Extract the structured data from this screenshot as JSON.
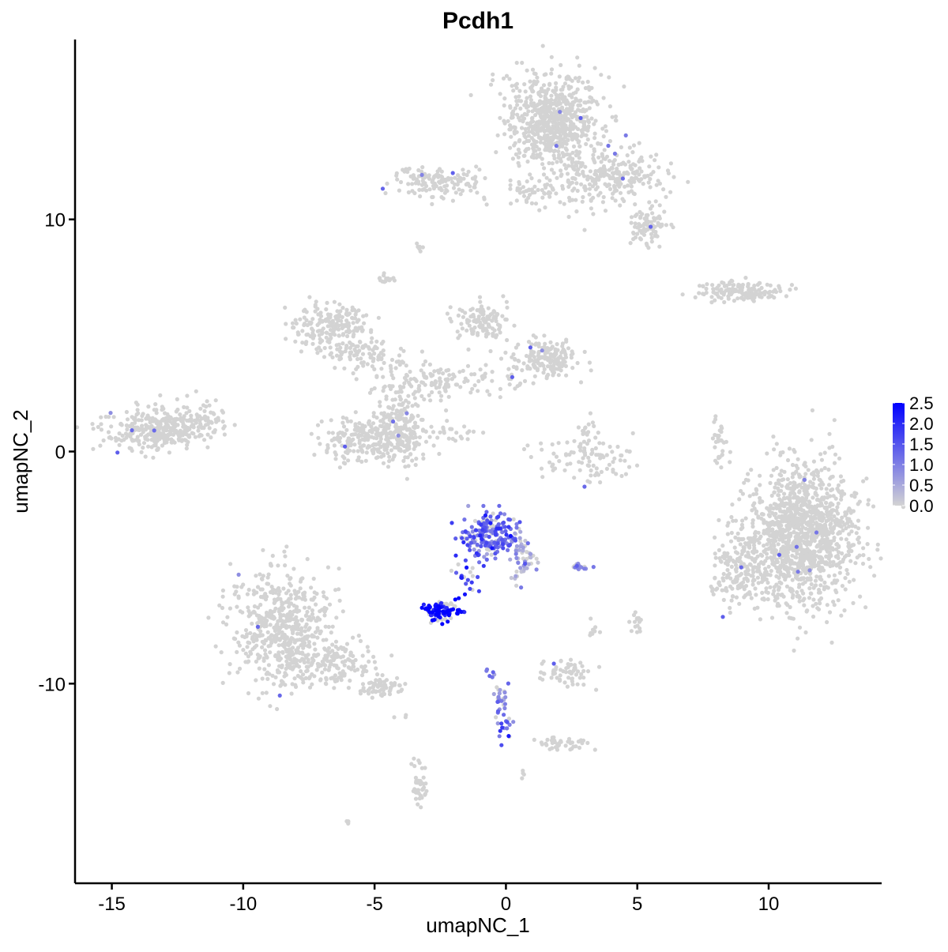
{
  "chart_data": {
    "type": "scatter",
    "title": "Pcdh1",
    "xlabel": "umapNC_1",
    "ylabel": "umapNC_2",
    "xlim": [
      -16.4,
      14.3
    ],
    "ylim": [
      -18.6,
      17.75
    ],
    "xticks": [
      -15,
      -10,
      -5,
      0,
      5,
      10
    ],
    "yticks": [
      -10,
      0,
      10
    ],
    "grid": false,
    "legend": {
      "placement": "right",
      "type": "colorbar",
      "ticks": [
        "0.0",
        "0.5",
        "1.0",
        "1.5",
        "2.0",
        "2.5"
      ],
      "range": [
        0,
        2.5
      ]
    },
    "colors": {
      "low": "#d3d3d3",
      "high": "#0000ff"
    },
    "clusters": [
      {
        "x": 1.8,
        "y": 14.2,
        "sx": 0.9,
        "sy": 1.0,
        "n": 700,
        "expr": 0
      },
      {
        "x": 3.9,
        "y": 11.8,
        "sx": 1.1,
        "sy": 0.6,
        "n": 250,
        "expr": 0
      },
      {
        "x": 5.4,
        "y": 9.7,
        "sx": 0.4,
        "sy": 0.35,
        "n": 90,
        "expr": 0
      },
      {
        "x": -2.5,
        "y": 11.6,
        "sx": 0.9,
        "sy": 0.3,
        "n": 140,
        "expr": 0
      },
      {
        "x": 0.8,
        "y": 11.1,
        "sx": 0.6,
        "sy": 0.3,
        "n": 40,
        "expr": 0
      },
      {
        "x": -3.3,
        "y": 8.8,
        "sx": 0.1,
        "sy": 0.1,
        "n": 6,
        "expr": 0
      },
      {
        "x": -4.5,
        "y": 7.4,
        "sx": 0.15,
        "sy": 0.15,
        "n": 15,
        "expr": 0
      },
      {
        "x": -6.6,
        "y": 5.4,
        "sx": 0.7,
        "sy": 0.5,
        "n": 200,
        "expr": 0
      },
      {
        "x": -5.2,
        "y": 4.2,
        "sx": 0.8,
        "sy": 0.4,
        "n": 80,
        "expr": 0
      },
      {
        "x": -0.9,
        "y": 5.6,
        "sx": 0.5,
        "sy": 0.4,
        "n": 120,
        "expr": 0
      },
      {
        "x": 1.5,
        "y": 4.0,
        "sx": 0.6,
        "sy": 0.4,
        "n": 180,
        "expr": 0
      },
      {
        "x": -2.4,
        "y": 3.0,
        "sx": 1.3,
        "sy": 0.4,
        "n": 140,
        "expr": 0
      },
      {
        "x": -4.2,
        "y": 1.6,
        "sx": 0.4,
        "sy": 0.9,
        "n": 100,
        "expr": 0
      },
      {
        "x": -5.5,
        "y": 0.5,
        "sx": 0.7,
        "sy": 0.5,
        "n": 170,
        "expr": 0
      },
      {
        "x": -3.9,
        "y": 0.6,
        "sx": 0.5,
        "sy": 0.6,
        "n": 150,
        "expr": 0
      },
      {
        "x": -1.8,
        "y": 0.9,
        "sx": 0.5,
        "sy": 0.25,
        "n": 20,
        "expr": 0
      },
      {
        "x": -13.3,
        "y": 0.9,
        "sx": 1.0,
        "sy": 0.4,
        "n": 320,
        "expr": 0
      },
      {
        "x": -11.9,
        "y": 1.5,
        "sx": 0.6,
        "sy": 0.4,
        "n": 60,
        "expr": 0
      },
      {
        "x": 3.0,
        "y": -0.3,
        "sx": 0.9,
        "sy": 0.5,
        "n": 90,
        "expr": 0
      },
      {
        "x": 3.1,
        "y": 0.8,
        "sx": 0.2,
        "sy": 0.4,
        "n": 20,
        "expr": 0
      },
      {
        "x": 8.9,
        "y": 6.9,
        "sx": 0.8,
        "sy": 0.2,
        "n": 150,
        "expr": 0
      },
      {
        "x": 8.2,
        "y": 0.5,
        "sx": 0.15,
        "sy": 0.6,
        "n": 30,
        "expr": 0
      },
      {
        "x": 11.3,
        "y": -3.6,
        "sx": 1.0,
        "sy": 1.5,
        "n": 1300,
        "expr": 0
      },
      {
        "x": 9.0,
        "y": -5.0,
        "sx": 0.5,
        "sy": 0.9,
        "n": 200,
        "expr": 0
      },
      {
        "x": -8.6,
        "y": -7.6,
        "sx": 0.9,
        "sy": 1.2,
        "n": 550,
        "expr": 0
      },
      {
        "x": -6.5,
        "y": -9.2,
        "sx": 0.8,
        "sy": 0.5,
        "n": 160,
        "expr": 0
      },
      {
        "x": -4.7,
        "y": -10.2,
        "sx": 0.4,
        "sy": 0.2,
        "n": 60,
        "expr": 0
      },
      {
        "x": -0.6,
        "y": -3.6,
        "sx": 0.55,
        "sy": 0.5,
        "n": 220,
        "expr": 1.3
      },
      {
        "x": 0.7,
        "y": -4.7,
        "sx": 0.3,
        "sy": 0.5,
        "n": 50,
        "expr": 0.4
      },
      {
        "x": -1.5,
        "y": -5.6,
        "sx": 0.3,
        "sy": 0.4,
        "n": 20,
        "expr": 1.8
      },
      {
        "x": -2.4,
        "y": -6.9,
        "sx": 0.3,
        "sy": 0.2,
        "n": 110,
        "expr": 2.4
      },
      {
        "x": 2.8,
        "y": -5.0,
        "sx": 0.15,
        "sy": 0.08,
        "n": 15,
        "expr": 1.0
      },
      {
        "x": 5.0,
        "y": -7.5,
        "sx": 0.12,
        "sy": 0.25,
        "n": 15,
        "expr": 0
      },
      {
        "x": 3.3,
        "y": -7.7,
        "sx": 0.1,
        "sy": 0.2,
        "n": 8,
        "expr": 0
      },
      {
        "x": 2.3,
        "y": -9.5,
        "sx": 0.5,
        "sy": 0.3,
        "n": 60,
        "expr": 0
      },
      {
        "x": -0.6,
        "y": -9.5,
        "sx": 0.1,
        "sy": 0.2,
        "n": 6,
        "expr": 1.0
      },
      {
        "x": -0.2,
        "y": -10.7,
        "sx": 0.15,
        "sy": 0.5,
        "n": 25,
        "expr": 0.7
      },
      {
        "x": 0.0,
        "y": -11.8,
        "sx": 0.15,
        "sy": 0.25,
        "n": 15,
        "expr": 1.2
      },
      {
        "x": 2.2,
        "y": -12.6,
        "sx": 0.5,
        "sy": 0.12,
        "n": 40,
        "expr": 0
      },
      {
        "x": -3.3,
        "y": -14.4,
        "sx": 0.15,
        "sy": 0.5,
        "n": 40,
        "expr": 0
      },
      {
        "x": 0.6,
        "y": -13.9,
        "sx": 0.08,
        "sy": 0.08,
        "n": 4,
        "expr": 0
      },
      {
        "x": -6.0,
        "y": -16.0,
        "sx": 0.08,
        "sy": 0.08,
        "n": 4,
        "expr": 0
      },
      {
        "x": -3.9,
        "y": -11.4,
        "sx": 0.3,
        "sy": 0.1,
        "n": 3,
        "expr": 0
      }
    ]
  }
}
